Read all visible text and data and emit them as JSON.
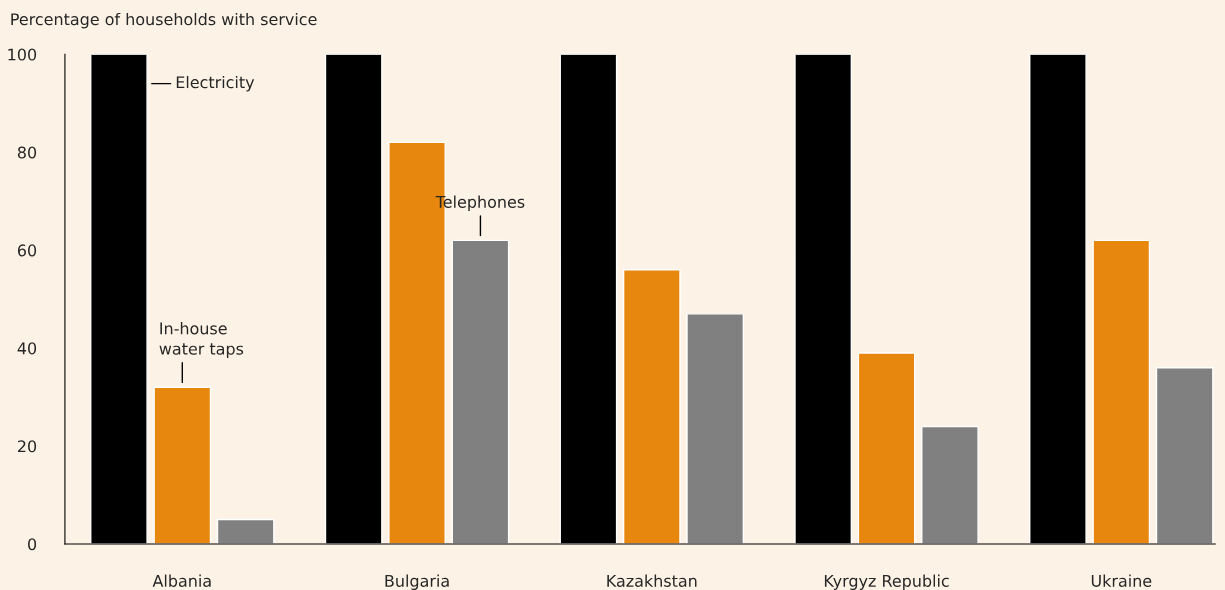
{
  "chart_data": {
    "type": "bar",
    "ylabel": "Percentage of households with service",
    "categories": [
      "Albania",
      "Bulgaria",
      "Kazakhstan",
      "Kyrgyz Republic",
      "Ukraine"
    ],
    "series": [
      {
        "name": "Electricity",
        "color": "#000000",
        "values": [
          100,
          100,
          100,
          100,
          100
        ]
      },
      {
        "name": "In-house water taps",
        "color": "#e8870e",
        "values": [
          32,
          82,
          56,
          39,
          62
        ]
      },
      {
        "name": "Telephones",
        "color": "#808080",
        "values": [
          5,
          62,
          47,
          24,
          36
        ]
      }
    ],
    "ylim": [
      0,
      100
    ],
    "yticks": [
      0,
      20,
      40,
      60,
      80,
      100
    ],
    "grid": false
  }
}
